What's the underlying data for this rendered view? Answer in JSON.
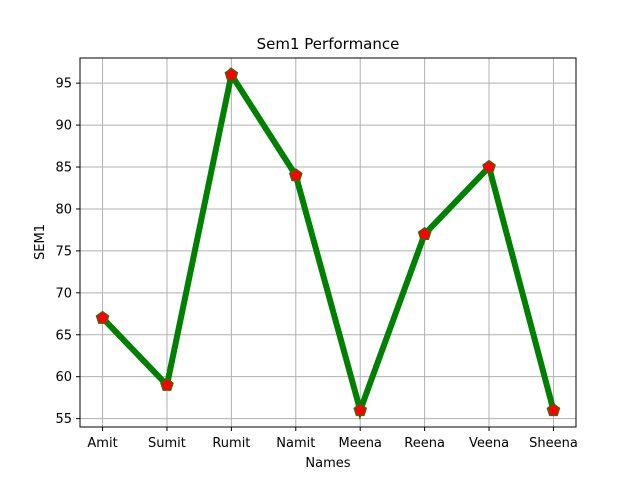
{
  "chart_data": {
    "type": "line",
    "title": "Sem1 Performance",
    "xlabel": "Names",
    "ylabel": "SEM1",
    "categories": [
      "Amit",
      "Sumit",
      "Rumit",
      "Namit",
      "Meena",
      "Reena",
      "Veena",
      "Sheena"
    ],
    "series": [
      {
        "values": [
          67,
          59,
          96,
          84,
          56,
          77,
          85,
          56
        ]
      }
    ],
    "ylim": [
      54.0,
      98.0
    ],
    "yticks": [
      55,
      60,
      65,
      70,
      75,
      80,
      85,
      90,
      95
    ],
    "grid": true,
    "line_color": "#008000",
    "marker": "pentagon",
    "marker_face_color": "#ff0000",
    "marker_edge_color": "#2f6f12"
  }
}
